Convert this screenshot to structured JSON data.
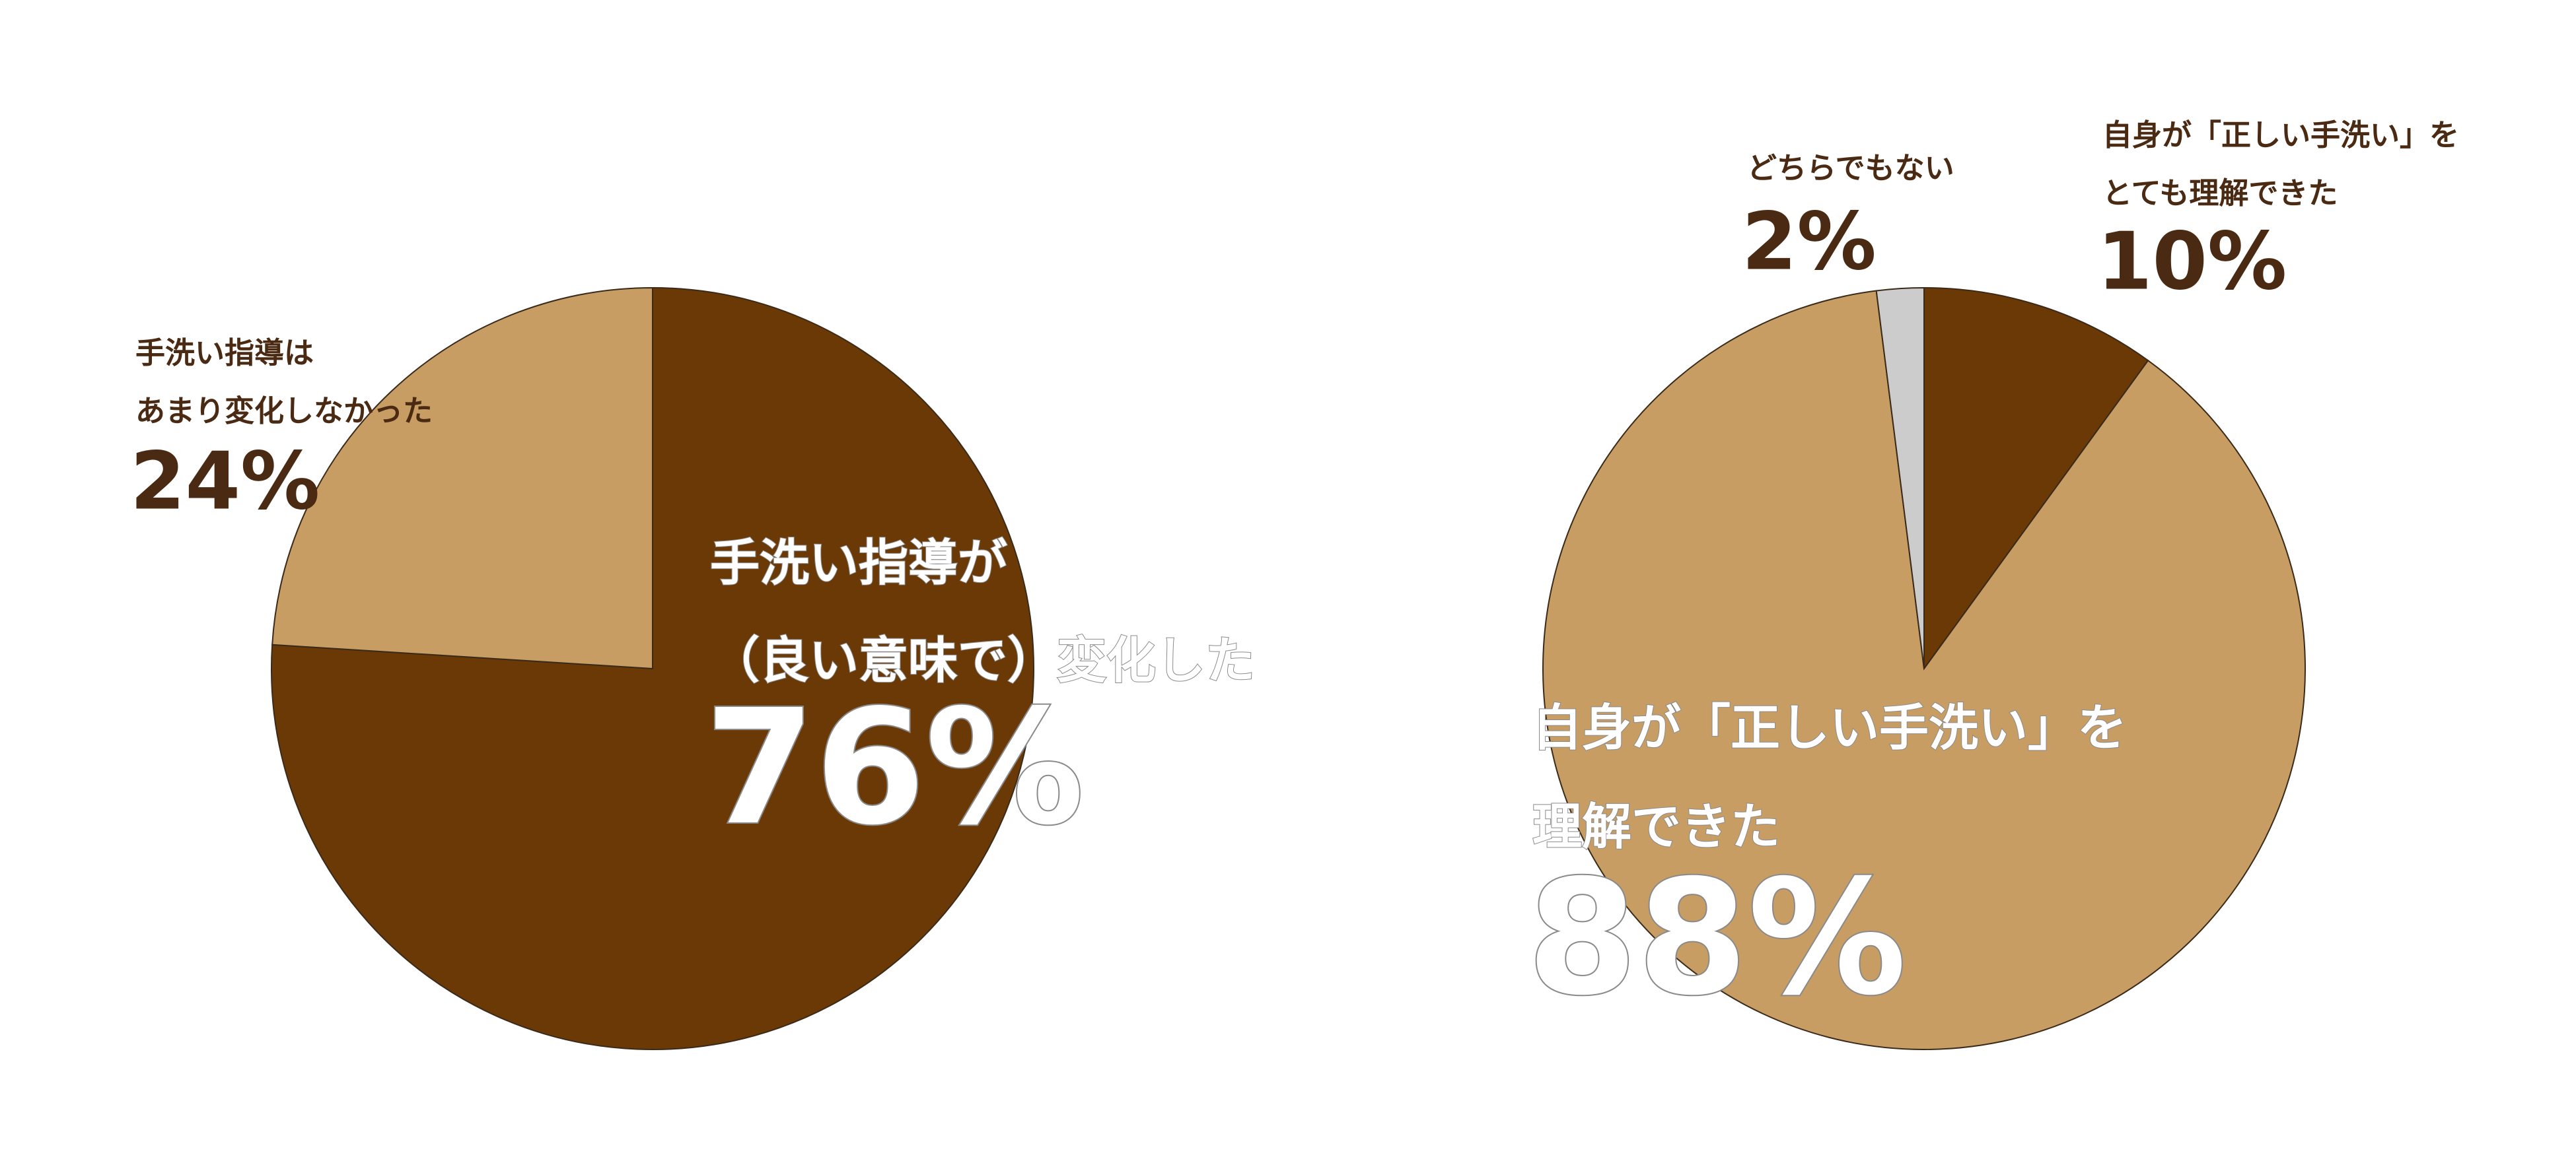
{
  "chart_data": [
    {
      "type": "pie",
      "categories": [
        [
          "手洗い指導が",
          "（良い意味で）変化した"
        ],
        [
          "手洗い指導は",
          "あまり変化しなかった"
        ]
      ],
      "values": [
        76,
        24
      ],
      "value_labels": [
        "76%",
        "24%"
      ],
      "colors": [
        "#6b3906",
        "#c79d63"
      ]
    },
    {
      "type": "pie",
      "categories": [
        [
          "自身が「正しい手洗い」を",
          "とても理解できた"
        ],
        [
          "自身が「正しい手洗い」を",
          "理解できた"
        ],
        [
          "どちらでもない"
        ]
      ],
      "values": [
        10,
        88,
        2
      ],
      "value_labels": [
        "10%",
        "88%",
        "2%"
      ],
      "colors": [
        "#6b3906",
        "#c79d63",
        "#cccccc"
      ]
    }
  ]
}
